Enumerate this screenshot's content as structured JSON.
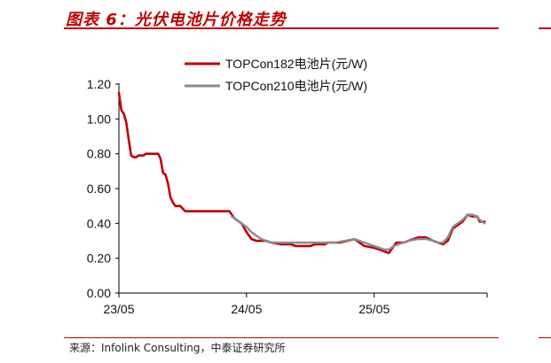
{
  "title": "图表 6：光伏电池片价格走势",
  "source": "来源：Infolink Consulting，中泰证券研究所",
  "colors": {
    "accent": "#c00000",
    "series1": "#c00000",
    "series2": "#8c8c8c"
  },
  "chart_data": {
    "type": "line",
    "xlabel": "",
    "ylabel": "",
    "ylim": [
      0,
      1.2
    ],
    "yticks": [
      "0.00",
      "0.20",
      "0.40",
      "0.60",
      "0.80",
      "1.00",
      "1.20"
    ],
    "ytick_values": [
      0,
      0.2,
      0.4,
      0.6,
      0.8,
      1.0,
      1.2
    ],
    "xticks": [
      "23/05",
      "24/05",
      "25/05"
    ],
    "xtick_positions": [
      0,
      52,
      104
    ],
    "xmax": 150,
    "legend": "top",
    "series": [
      {
        "name": "TOPCon182电池片(元/W)",
        "color": "#c00000",
        "points": [
          [
            0,
            1.15
          ],
          [
            1,
            1.05
          ],
          [
            2,
            1.03
          ],
          [
            3,
            0.98
          ],
          [
            4,
            0.88
          ],
          [
            5,
            0.79
          ],
          [
            6,
            0.78
          ],
          [
            7,
            0.78
          ],
          [
            8,
            0.79
          ],
          [
            10,
            0.79
          ],
          [
            11,
            0.8
          ],
          [
            12,
            0.8
          ],
          [
            16,
            0.8
          ],
          [
            17,
            0.77
          ],
          [
            18,
            0.69
          ],
          [
            19,
            0.68
          ],
          [
            20,
            0.63
          ],
          [
            21,
            0.55
          ],
          [
            22,
            0.52
          ],
          [
            23,
            0.5
          ],
          [
            25,
            0.5
          ],
          [
            27,
            0.47
          ],
          [
            30,
            0.47
          ],
          [
            35,
            0.47
          ],
          [
            45,
            0.47
          ],
          [
            46,
            0.45
          ],
          [
            47,
            0.43
          ],
          [
            49,
            0.41
          ],
          [
            50,
            0.4
          ],
          [
            52,
            0.35
          ],
          [
            54,
            0.31
          ],
          [
            56,
            0.3
          ],
          [
            60,
            0.3
          ],
          [
            62,
            0.29
          ],
          [
            66,
            0.28
          ],
          [
            70,
            0.28
          ],
          [
            72,
            0.27
          ],
          [
            78,
            0.27
          ],
          [
            80,
            0.28
          ],
          [
            84,
            0.28
          ],
          [
            85,
            0.29
          ],
          [
            90,
            0.29
          ],
          [
            93,
            0.3
          ],
          [
            96,
            0.31
          ],
          [
            98,
            0.29
          ],
          [
            100,
            0.27
          ],
          [
            104,
            0.26
          ],
          [
            106,
            0.25
          ],
          [
            108,
            0.24
          ],
          [
            110,
            0.23
          ],
          [
            112,
            0.27
          ],
          [
            113,
            0.29
          ],
          [
            116,
            0.29
          ],
          [
            118,
            0.3
          ],
          [
            120,
            0.31
          ],
          [
            122,
            0.32
          ],
          [
            125,
            0.32
          ],
          [
            128,
            0.3
          ],
          [
            130,
            0.29
          ],
          [
            132,
            0.28
          ],
          [
            134,
            0.3
          ],
          [
            136,
            0.37
          ],
          [
            138,
            0.39
          ],
          [
            140,
            0.41
          ],
          [
            142,
            0.45
          ],
          [
            144,
            0.44
          ],
          [
            146,
            0.44
          ],
          [
            147,
            0.41
          ],
          [
            149,
            0.41
          ]
        ]
      },
      {
        "name": "TOPCon210电池片(元/W)",
        "color": "#8c8c8c",
        "points": [
          [
            46,
            0.44
          ],
          [
            48,
            0.42
          ],
          [
            50,
            0.4
          ],
          [
            52,
            0.38
          ],
          [
            54,
            0.35
          ],
          [
            56,
            0.33
          ],
          [
            58,
            0.31
          ],
          [
            60,
            0.3
          ],
          [
            62,
            0.29
          ],
          [
            66,
            0.29
          ],
          [
            70,
            0.29
          ],
          [
            76,
            0.29
          ],
          [
            82,
            0.29
          ],
          [
            88,
            0.29
          ],
          [
            92,
            0.3
          ],
          [
            96,
            0.31
          ],
          [
            98,
            0.3
          ],
          [
            100,
            0.29
          ],
          [
            104,
            0.27
          ],
          [
            108,
            0.25
          ],
          [
            110,
            0.25
          ],
          [
            112,
            0.27
          ],
          [
            114,
            0.28
          ],
          [
            116,
            0.29
          ],
          [
            118,
            0.3
          ],
          [
            122,
            0.31
          ],
          [
            125,
            0.31
          ],
          [
            128,
            0.3
          ],
          [
            130,
            0.29
          ],
          [
            132,
            0.29
          ],
          [
            134,
            0.32
          ],
          [
            136,
            0.38
          ],
          [
            138,
            0.4
          ],
          [
            140,
            0.42
          ],
          [
            142,
            0.45
          ],
          [
            144,
            0.45
          ],
          [
            146,
            0.44
          ],
          [
            147,
            0.42
          ],
          [
            149,
            0.4
          ]
        ]
      }
    ]
  }
}
